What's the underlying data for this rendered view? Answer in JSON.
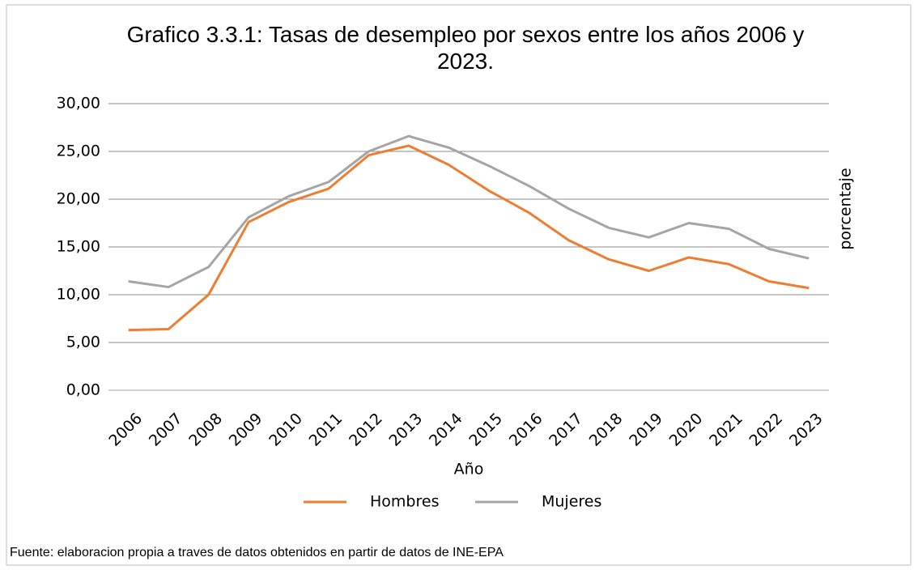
{
  "chart_data": {
    "type": "line",
    "title": "Grafico 3.3.1: Tasas de desempleo por sexos entre los años 2006 y 2023.",
    "x_label": "Año",
    "y_label": "porcentaje",
    "source": "Fuente: elaboracion propia a traves de datos obtenidos en partir de datos de INE-EPA",
    "categories": [
      "2006",
      "2007",
      "2008",
      "2009",
      "2010",
      "2011",
      "2012",
      "2013",
      "2014",
      "2015",
      "2016",
      "2017",
      "2018",
      "2019",
      "2020",
      "2021",
      "2022",
      "2023"
    ],
    "series": [
      {
        "name": "Hombres",
        "color": "#ed7d31",
        "values": [
          6.3,
          6.4,
          10.0,
          17.6,
          19.7,
          21.1,
          24.6,
          25.6,
          23.6,
          20.9,
          18.6,
          15.7,
          13.7,
          12.5,
          13.9,
          13.2,
          11.4,
          10.7
        ]
      },
      {
        "name": "Mujeres",
        "color": "#a5a5a5",
        "values": [
          11.4,
          10.8,
          12.9,
          18.1,
          20.3,
          21.8,
          25.0,
          26.6,
          25.4,
          23.5,
          21.4,
          19.0,
          17.0,
          16.0,
          17.5,
          16.9,
          14.8,
          13.8
        ]
      }
    ],
    "ylim": [
      0,
      30
    ],
    "yticks": [
      {
        "value": 0,
        "label": "0,00"
      },
      {
        "value": 5,
        "label": "5,00"
      },
      {
        "value": 10,
        "label": "10,00"
      },
      {
        "value": 15,
        "label": "15,00"
      },
      {
        "value": 20,
        "label": "20,00"
      },
      {
        "value": 25,
        "label": "25,00"
      },
      {
        "value": 30,
        "label": "30,00"
      }
    ],
    "grid": true,
    "legend": "bottom"
  }
}
